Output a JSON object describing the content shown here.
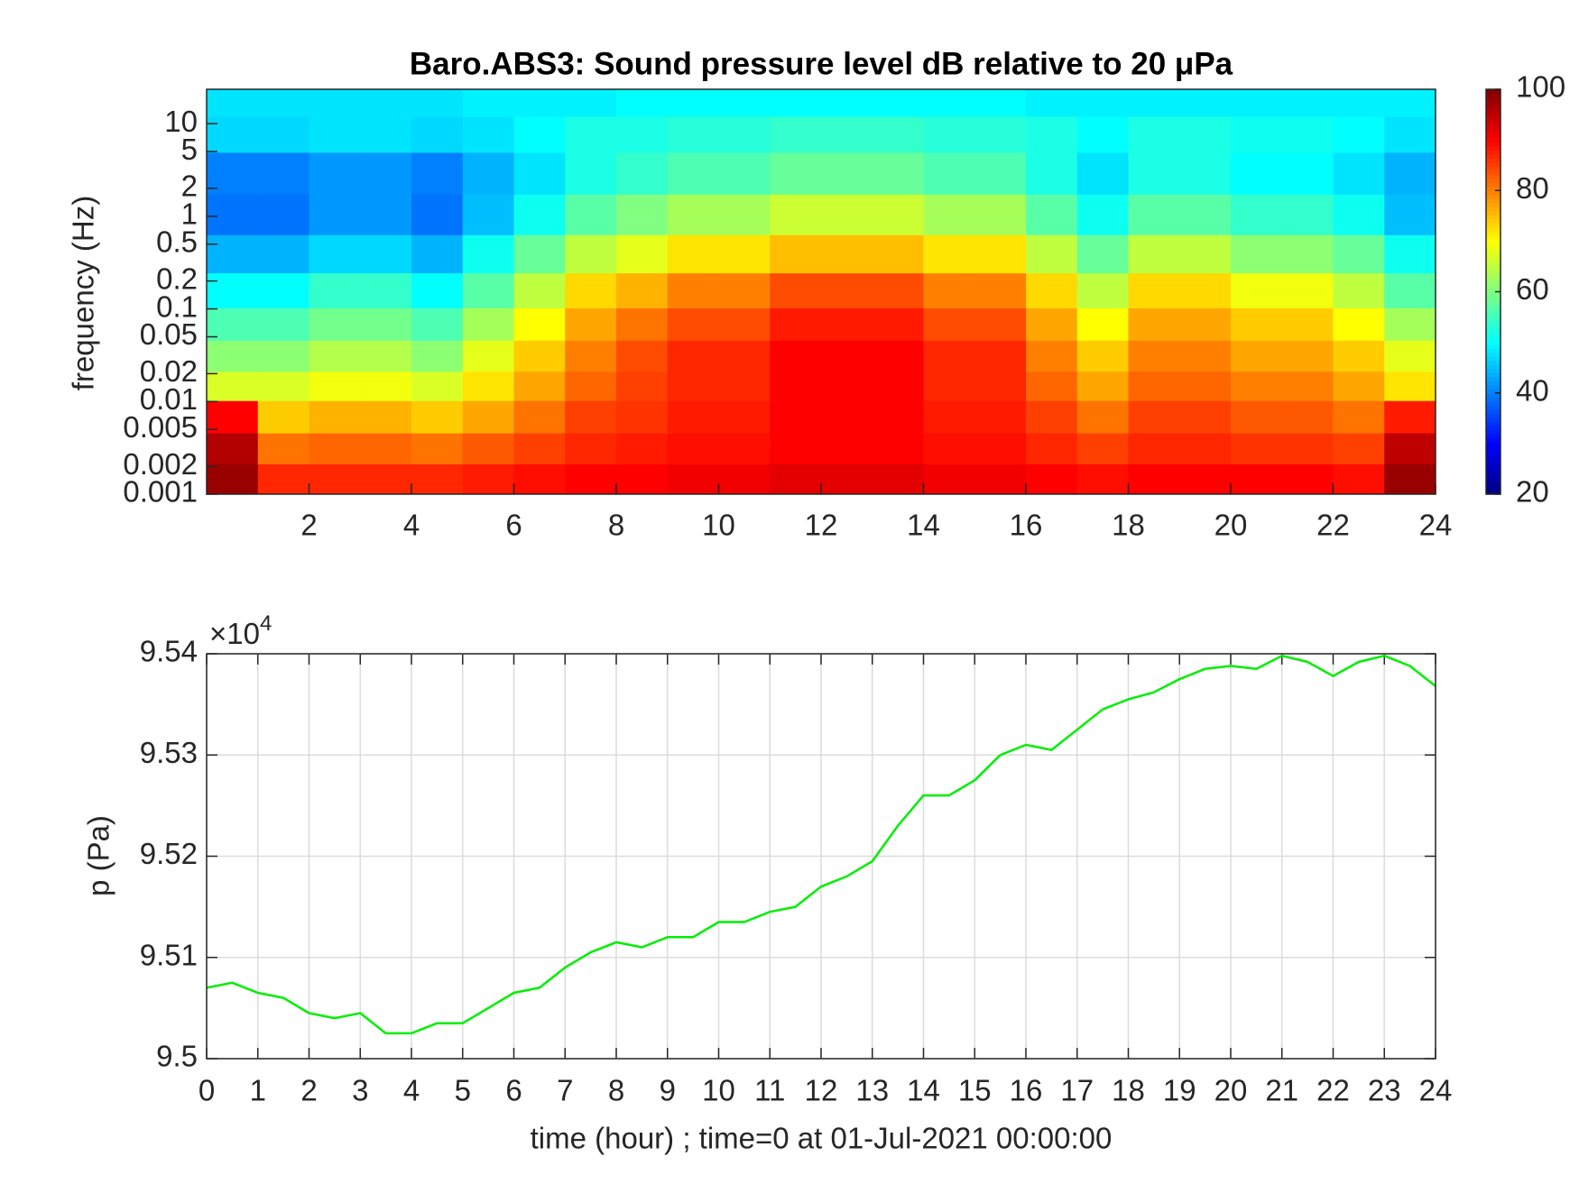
{
  "chart_data": [
    {
      "type": "heatmap",
      "title": "Baro.ABS3: Sound pressure level dB relative to 20 μPa",
      "ylabel": "frequency (Hz)",
      "xlim": [
        0,
        24
      ],
      "xticks": [
        2,
        4,
        6,
        8,
        10,
        12,
        14,
        16,
        18,
        20,
        22,
        24
      ],
      "ylim": [
        0.001,
        23.5
      ],
      "yscale": "log",
      "yticks": [
        0.001,
        0.002,
        0.005,
        0.01,
        0.02,
        0.05,
        0.1,
        0.2,
        0.5,
        1,
        2,
        5,
        10
      ],
      "x": [
        0.5,
        1.5,
        2.5,
        3.5,
        4.5,
        5.5,
        6.5,
        7.5,
        8.5,
        9.5,
        10.5,
        11.5,
        12.5,
        13.5,
        14.5,
        15.5,
        16.5,
        17.5,
        18.5,
        19.5,
        20.5,
        21.5,
        22.5,
        23.5
      ],
      "y": [
        0.0015,
        0.003,
        0.007,
        0.015,
        0.03,
        0.07,
        0.15,
        0.4,
        1,
        3,
        8,
        18
      ],
      "z": [
        [
          98,
          87,
          87,
          87,
          87,
          88,
          89,
          90,
          90,
          91,
          91,
          92,
          92,
          92,
          91,
          91,
          90,
          89,
          90,
          90,
          90,
          90,
          89,
          98
        ],
        [
          96,
          81,
          82,
          82,
          81,
          83,
          85,
          87,
          88,
          89,
          89,
          90,
          90,
          90,
          89,
          89,
          87,
          85,
          87,
          87,
          86,
          86,
          85,
          95
        ],
        [
          90,
          74,
          76,
          76,
          74,
          77,
          81,
          85,
          86,
          88,
          88,
          90,
          90,
          90,
          88,
          88,
          85,
          81,
          85,
          85,
          83,
          83,
          81,
          88
        ],
        [
          67,
          67,
          69,
          69,
          67,
          72,
          77,
          82,
          85,
          87,
          87,
          90,
          90,
          90,
          87,
          87,
          82,
          77,
          82,
          82,
          80,
          80,
          77,
          72
        ],
        [
          61,
          61,
          64,
          64,
          61,
          68,
          74,
          80,
          84,
          87,
          87,
          90,
          90,
          90,
          87,
          87,
          80,
          74,
          80,
          80,
          77,
          77,
          74,
          68
        ],
        [
          56,
          56,
          59,
          59,
          56,
          63,
          70,
          77,
          81,
          84,
          84,
          88,
          88,
          88,
          84,
          84,
          77,
          70,
          77,
          77,
          74,
          74,
          70,
          63
        ],
        [
          50,
          50,
          54,
          54,
          50,
          57,
          65,
          73,
          76,
          80,
          80,
          84,
          84,
          84,
          80,
          80,
          73,
          65,
          73,
          73,
          69,
          69,
          65,
          57
        ],
        [
          44,
          44,
          47,
          47,
          44,
          51,
          58,
          65,
          68,
          72,
          72,
          75,
          75,
          75,
          72,
          72,
          65,
          58,
          65,
          65,
          61,
          61,
          58,
          51
        ],
        [
          39,
          39,
          42,
          42,
          39,
          45,
          51,
          57,
          60,
          63,
          63,
          66,
          66,
          66,
          63,
          63,
          57,
          51,
          57,
          57,
          54,
          54,
          51,
          45
        ],
        [
          40,
          40,
          42,
          42,
          40,
          44,
          48,
          52,
          54,
          56,
          56,
          58,
          58,
          58,
          56,
          56,
          52,
          48,
          52,
          52,
          50,
          50,
          48,
          44
        ],
        [
          47,
          47,
          48,
          48,
          47,
          48,
          50,
          52,
          52,
          53,
          53,
          54,
          54,
          54,
          53,
          53,
          52,
          50,
          52,
          52,
          51,
          51,
          50,
          48
        ],
        [
          48,
          48,
          48,
          48,
          48,
          49,
          49,
          49,
          50,
          50,
          50,
          50,
          50,
          50,
          50,
          50,
          49,
          49,
          49,
          49,
          49,
          49,
          49,
          49
        ]
      ],
      "colorbar": {
        "lim": [
          20,
          100
        ],
        "ticks": [
          20,
          40,
          60,
          80,
          100
        ],
        "colormap": "jet"
      }
    },
    {
      "type": "line",
      "xlabel": "time (hour) ; time=0 at 01-Jul-2021 00:00:00",
      "ylabel": "p (Pa)",
      "y_multiplier": {
        "base": "×10",
        "exponent": "4"
      },
      "xlim": [
        0,
        24
      ],
      "xticks": [
        0,
        1,
        2,
        3,
        4,
        5,
        6,
        7,
        8,
        9,
        10,
        11,
        12,
        13,
        14,
        15,
        16,
        17,
        18,
        19,
        20,
        21,
        22,
        23,
        24
      ],
      "ylim": [
        9.5,
        9.54
      ],
      "yticks": [
        9.5,
        9.51,
        9.52,
        9.53,
        9.54
      ],
      "grid": true,
      "x": [
        0,
        0.5,
        1,
        1.5,
        2,
        2.5,
        3,
        3.5,
        4,
        4.5,
        5,
        5.5,
        6,
        6.5,
        7,
        7.5,
        8,
        8.5,
        9,
        9.5,
        10,
        10.5,
        11,
        11.5,
        12,
        12.5,
        13,
        13.5,
        14,
        14.5,
        15,
        15.5,
        16,
        16.5,
        17,
        17.5,
        18,
        18.5,
        19,
        19.5,
        20,
        20.5,
        21,
        21.5,
        22,
        22.5,
        23,
        23.5,
        24
      ],
      "series": [
        {
          "color": "#00ee00",
          "values": [
            9.507,
            9.5075,
            9.5065,
            9.506,
            9.5045,
            9.504,
            9.5045,
            9.5025,
            9.5025,
            9.5035,
            9.5035,
            9.505,
            9.5065,
            9.507,
            9.509,
            9.5105,
            9.5115,
            9.511,
            9.512,
            9.512,
            9.5135,
            9.5135,
            9.5145,
            9.515,
            9.517,
            9.518,
            9.5195,
            9.523,
            9.526,
            9.526,
            9.5275,
            9.53,
            9.531,
            9.5305,
            9.5325,
            9.5345,
            9.5355,
            9.5362,
            9.5375,
            9.5385,
            9.5388,
            9.5385,
            9.5398,
            9.5392,
            9.5378,
            9.5392,
            9.5398,
            9.5388,
            9.5368
          ]
        }
      ]
    }
  ]
}
